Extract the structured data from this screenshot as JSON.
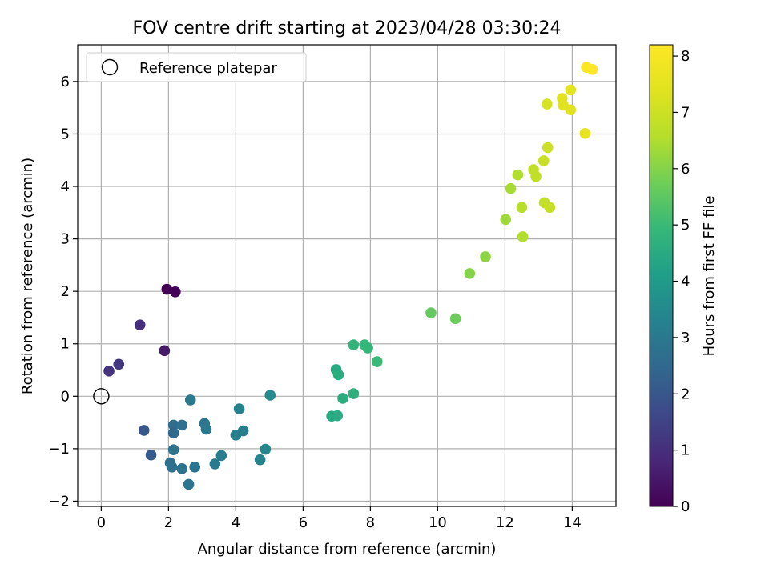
{
  "chart_data": {
    "type": "scatter",
    "title": "FOV centre drift starting at 2023/04/28 03:30:24",
    "xlabel": "Angular distance from reference (arcmin)",
    "ylabel": "Rotation from reference (arcmin)",
    "xlim": [
      -0.7,
      15.3
    ],
    "ylim": [
      -2.1,
      6.7
    ],
    "xticks": [
      0,
      2,
      4,
      6,
      8,
      10,
      12,
      14
    ],
    "yticks": [
      -2,
      -1,
      0,
      1,
      2,
      3,
      4,
      5,
      6
    ],
    "grid": true,
    "legend": {
      "position": "top-left",
      "entries": [
        "Reference platepar"
      ]
    },
    "reference_point": {
      "x": 0,
      "y": 0,
      "marker": "open-circle"
    },
    "colorbar": {
      "label": "Hours from first FF file",
      "range": [
        0,
        8.2
      ],
      "ticks": [
        0,
        1,
        2,
        3,
        4,
        5,
        6,
        7,
        8
      ],
      "colormap": "viridis"
    },
    "points": [
      {
        "x": 1.95,
        "y": 2.04,
        "c": 0.0
      },
      {
        "x": 2.2,
        "y": 1.99,
        "c": 0.05
      },
      {
        "x": 1.15,
        "y": 1.36,
        "c": 1.0
      },
      {
        "x": 1.88,
        "y": 0.87,
        "c": 0.5
      },
      {
        "x": 0.52,
        "y": 0.61,
        "c": 1.2
      },
      {
        "x": 0.23,
        "y": 0.48,
        "c": 1.1
      },
      {
        "x": 1.27,
        "y": -0.65,
        "c": 2.0
      },
      {
        "x": 1.48,
        "y": -1.12,
        "c": 2.1
      },
      {
        "x": 2.15,
        "y": -0.55,
        "c": 2.6
      },
      {
        "x": 2.15,
        "y": -0.7,
        "c": 2.5
      },
      {
        "x": 2.4,
        "y": -0.55,
        "c": 2.7
      },
      {
        "x": 2.65,
        "y": -0.07,
        "c": 3.0
      },
      {
        "x": 2.15,
        "y": -1.02,
        "c": 2.8
      },
      {
        "x": 2.05,
        "y": -1.27,
        "c": 2.7
      },
      {
        "x": 2.1,
        "y": -1.35,
        "c": 2.7
      },
      {
        "x": 2.4,
        "y": -1.38,
        "c": 2.8
      },
      {
        "x": 2.6,
        "y": -1.68,
        "c": 2.9
      },
      {
        "x": 2.78,
        "y": -1.35,
        "c": 2.9
      },
      {
        "x": 3.07,
        "y": -0.52,
        "c": 2.9
      },
      {
        "x": 3.12,
        "y": -0.63,
        "c": 3.0
      },
      {
        "x": 3.38,
        "y": -1.29,
        "c": 3.0
      },
      {
        "x": 3.57,
        "y": -1.13,
        "c": 3.1
      },
      {
        "x": 4.0,
        "y": -0.74,
        "c": 3.2
      },
      {
        "x": 4.22,
        "y": -0.66,
        "c": 3.2
      },
      {
        "x": 4.1,
        "y": -0.24,
        "c": 3.3
      },
      {
        "x": 4.72,
        "y": -1.21,
        "c": 3.3
      },
      {
        "x": 4.88,
        "y": -1.01,
        "c": 3.4
      },
      {
        "x": 5.02,
        "y": 0.02,
        "c": 3.5
      },
      {
        "x": 6.85,
        "y": -0.38,
        "c": 4.5
      },
      {
        "x": 7.02,
        "y": -0.37,
        "c": 4.6
      },
      {
        "x": 7.18,
        "y": -0.04,
        "c": 4.6
      },
      {
        "x": 7.5,
        "y": 0.05,
        "c": 4.7
      },
      {
        "x": 6.98,
        "y": 0.51,
        "c": 4.5
      },
      {
        "x": 7.05,
        "y": 0.41,
        "c": 4.6
      },
      {
        "x": 7.5,
        "y": 0.98,
        "c": 4.8
      },
      {
        "x": 7.83,
        "y": 0.98,
        "c": 4.9
      },
      {
        "x": 7.92,
        "y": 0.92,
        "c": 4.9
      },
      {
        "x": 8.2,
        "y": 0.66,
        "c": 5.0
      },
      {
        "x": 9.8,
        "y": 1.59,
        "c": 5.6
      },
      {
        "x": 10.53,
        "y": 1.48,
        "c": 5.7
      },
      {
        "x": 10.95,
        "y": 2.34,
        "c": 6.0
      },
      {
        "x": 11.42,
        "y": 2.66,
        "c": 6.1
      },
      {
        "x": 12.02,
        "y": 3.37,
        "c": 6.3
      },
      {
        "x": 12.17,
        "y": 3.96,
        "c": 6.4
      },
      {
        "x": 12.38,
        "y": 4.22,
        "c": 6.5
      },
      {
        "x": 12.53,
        "y": 3.04,
        "c": 6.5
      },
      {
        "x": 12.5,
        "y": 3.6,
        "c": 6.6
      },
      {
        "x": 12.85,
        "y": 4.32,
        "c": 6.8
      },
      {
        "x": 12.92,
        "y": 4.19,
        "c": 6.8
      },
      {
        "x": 13.17,
        "y": 3.69,
        "c": 6.8
      },
      {
        "x": 13.33,
        "y": 3.6,
        "c": 6.9
      },
      {
        "x": 13.15,
        "y": 4.49,
        "c": 6.9
      },
      {
        "x": 13.27,
        "y": 4.74,
        "c": 7.0
      },
      {
        "x": 13.25,
        "y": 5.57,
        "c": 7.2
      },
      {
        "x": 13.7,
        "y": 5.68,
        "c": 7.4
      },
      {
        "x": 13.73,
        "y": 5.55,
        "c": 7.4
      },
      {
        "x": 13.95,
        "y": 5.84,
        "c": 7.5
      },
      {
        "x": 13.95,
        "y": 5.46,
        "c": 7.4
      },
      {
        "x": 14.38,
        "y": 5.01,
        "c": 7.6
      },
      {
        "x": 14.42,
        "y": 6.27,
        "c": 8.1
      },
      {
        "x": 14.6,
        "y": 6.23,
        "c": 8.2
      }
    ]
  }
}
